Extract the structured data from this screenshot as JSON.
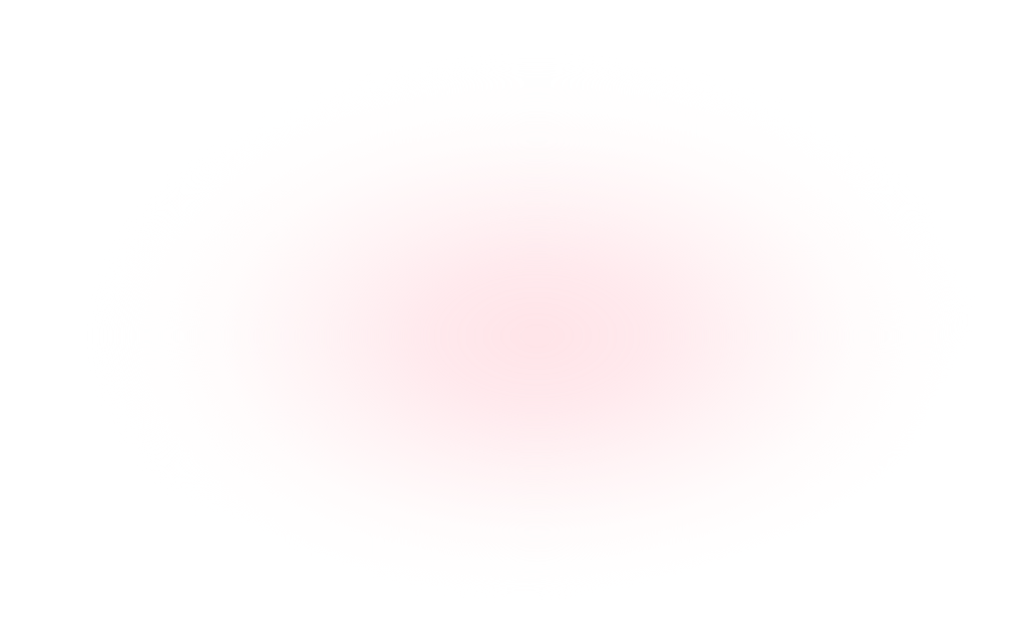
{
  "background": {
    "base_color": "#ffffff",
    "glow_color": "#ffe6ea"
  }
}
